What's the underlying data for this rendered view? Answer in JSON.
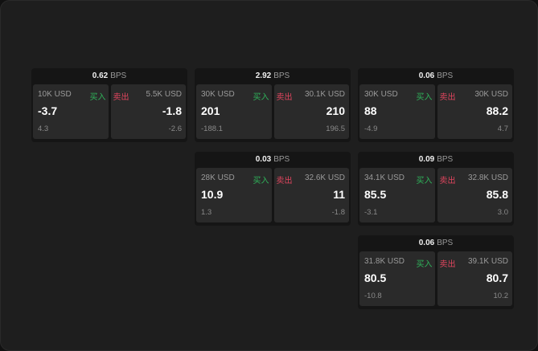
{
  "labels": {
    "bps": "BPS",
    "buy": "买入",
    "sell": "卖出"
  },
  "colors": {
    "buy": "#2fb35a",
    "sell": "#e0455e"
  },
  "cards": [
    {
      "spread": "0.62",
      "buy": {
        "qty": "10K USD",
        "price": "-3.7",
        "change": "4.3"
      },
      "sell": {
        "qty": "5.5K USD",
        "price": "-1.8",
        "change": "-2.6"
      }
    },
    {
      "spread": "2.92",
      "buy": {
        "qty": "30K USD",
        "price": "201",
        "change": "-188.1"
      },
      "sell": {
        "qty": "30.1K USD",
        "price": "210",
        "change": "196.5"
      }
    },
    {
      "spread": "0.06",
      "buy": {
        "qty": "30K USD",
        "price": "88",
        "change": "-4.9"
      },
      "sell": {
        "qty": "30K USD",
        "price": "88.2",
        "change": "4.7"
      }
    },
    {
      "spread": "0.03",
      "buy": {
        "qty": "28K USD",
        "price": "10.9",
        "change": "1.3"
      },
      "sell": {
        "qty": "32.6K USD",
        "price": "11",
        "change": "-1.8"
      }
    },
    {
      "spread": "0.09",
      "buy": {
        "qty": "34.1K USD",
        "price": "85.5",
        "change": "-3.1"
      },
      "sell": {
        "qty": "32.8K USD",
        "price": "85.8",
        "change": "3.0"
      }
    },
    {
      "spread": "0.06",
      "buy": {
        "qty": "31.8K USD",
        "price": "80.5",
        "change": "-10.8"
      },
      "sell": {
        "qty": "39.1K USD",
        "price": "80.7",
        "change": "10.2"
      }
    }
  ]
}
